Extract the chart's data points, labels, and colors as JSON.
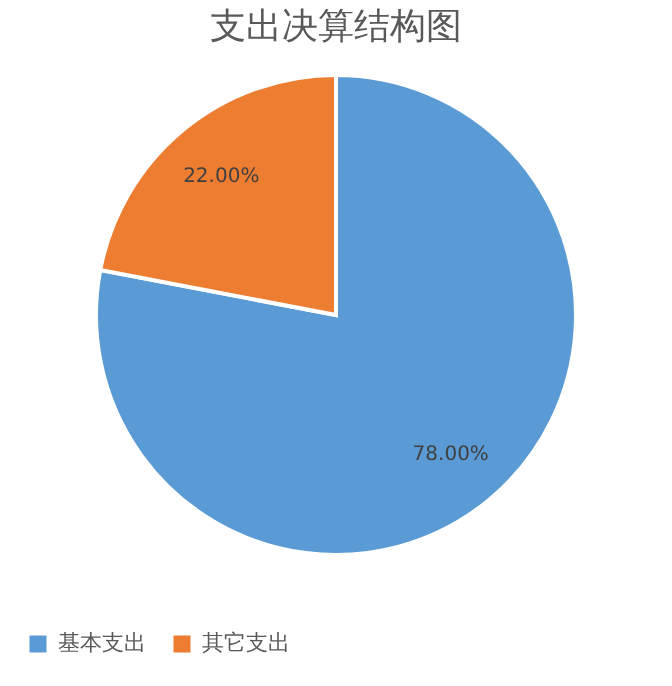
{
  "chart_data": {
    "type": "pie",
    "title": "支出决算结构图",
    "categories": [
      "基本支出",
      "其它支出"
    ],
    "values": [
      78,
      22
    ],
    "colors": [
      "#5b9bd5",
      "#ed7d31"
    ],
    "value_labels": [
      "78.00%",
      "22.00%"
    ],
    "legend": "bottom"
  }
}
